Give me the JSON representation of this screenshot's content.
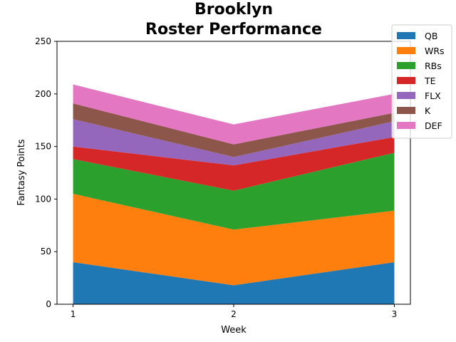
{
  "chart_data": {
    "type": "area",
    "stacked": true,
    "title_lines": [
      "Brooklyn",
      "Roster Performance"
    ],
    "xlabel": "Week",
    "ylabel": "Fantasy Points",
    "x": [
      1,
      2,
      3
    ],
    "x_tick_labels": [
      "1",
      "2",
      "3"
    ],
    "ylim": [
      0,
      250
    ],
    "y_ticks": [
      0,
      50,
      100,
      150,
      200,
      250
    ],
    "y_tick_labels": [
      "0",
      "50",
      "100",
      "150",
      "200",
      "250"
    ],
    "grid": false,
    "legend_position": "top-right",
    "series": [
      {
        "name": "QB",
        "color": "#1f77b4",
        "values": [
          40,
          18,
          40
        ]
      },
      {
        "name": "WRs",
        "color": "#ff7f0e",
        "values": [
          65,
          53,
          49
        ]
      },
      {
        "name": "RBs",
        "color": "#2ca02c",
        "values": [
          33,
          37,
          55
        ]
      },
      {
        "name": "TE",
        "color": "#d62728",
        "values": [
          12,
          24,
          15
        ]
      },
      {
        "name": "FLX",
        "color": "#9467bd",
        "values": [
          26,
          8,
          15
        ]
      },
      {
        "name": "K",
        "color": "#8c564b",
        "values": [
          15,
          12,
          8
        ]
      },
      {
        "name": "DEF",
        "color": "#e377c2",
        "values": [
          18,
          19,
          18
        ]
      }
    ]
  }
}
